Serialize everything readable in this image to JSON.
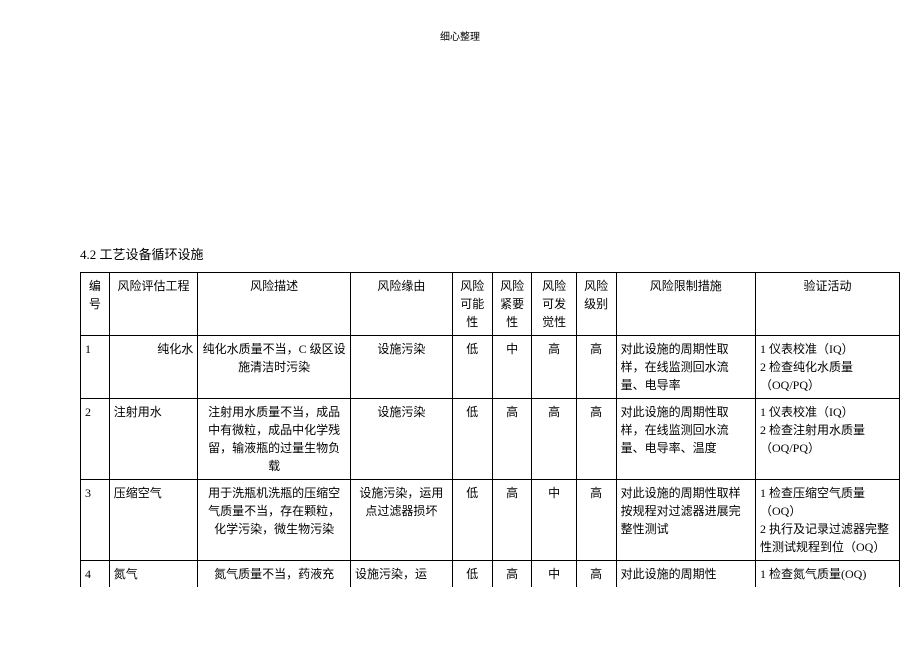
{
  "header": {
    "text": "细心整理"
  },
  "section": {
    "title": "4.2 工艺设备循环设施"
  },
  "table": {
    "columns": {
      "num": "编号",
      "item": "风险评估工程",
      "desc": "风险描述",
      "cause": "风险缘由",
      "possibility": "风险可能性",
      "urgency": "风险紧要性",
      "detect": "风险可发觉性",
      "level": "风险级别",
      "measure": "风险限制措施",
      "verify": "验证活动"
    },
    "rows": [
      {
        "num": "1",
        "item": "纯化水",
        "desc": "纯化水质量不当，C 级区设施清洁时污染",
        "cause": "设施污染",
        "possibility": "低",
        "urgency": "中",
        "detect": "高",
        "level": "高",
        "measure": "对此设施的周期性取样，在线监测回水流量、电导率",
        "verify": "1 仪表校准（IQ）\n2 检查纯化水质量（OQ/PQ）"
      },
      {
        "num": "2",
        "item": "注射用水",
        "desc": "注射用水质量不当，成品中有微粒，成品中化学残留，输液瓶的过量生物负载",
        "cause": "设施污染",
        "possibility": "低",
        "urgency": "高",
        "detect": "高",
        "level": "高",
        "measure": "对此设施的周期性取样，在线监测回水流量、电导率、温度",
        "verify": "1 仪表校准（IQ）\n2 检查注射用水质量（OQ/PQ）"
      },
      {
        "num": "3",
        "item": "压缩空气",
        "desc": "用于洗瓶机洗瓶的压缩空气质量不当，存在颗粒，化学污染，微生物污染",
        "cause": "设施污染，运用点过滤器损坏",
        "possibility": "低",
        "urgency": "高",
        "detect": "中",
        "level": "高",
        "measure": "对此设施的周期性取样按规程对过滤器进展完整性测试",
        "verify": "1 检查压缩空气质量（OQ）\n2 执行及记录过滤器完整性测试规程到位（OQ）"
      },
      {
        "num": "4",
        "item": "氮气",
        "desc": "氮气质量不当，药液充",
        "cause": "设施污染，运",
        "possibility": "低",
        "urgency": "高",
        "detect": "中",
        "level": "高",
        "measure": "对此设施的周期性",
        "verify": "1 检查氮气质量(OQ)"
      }
    ]
  }
}
